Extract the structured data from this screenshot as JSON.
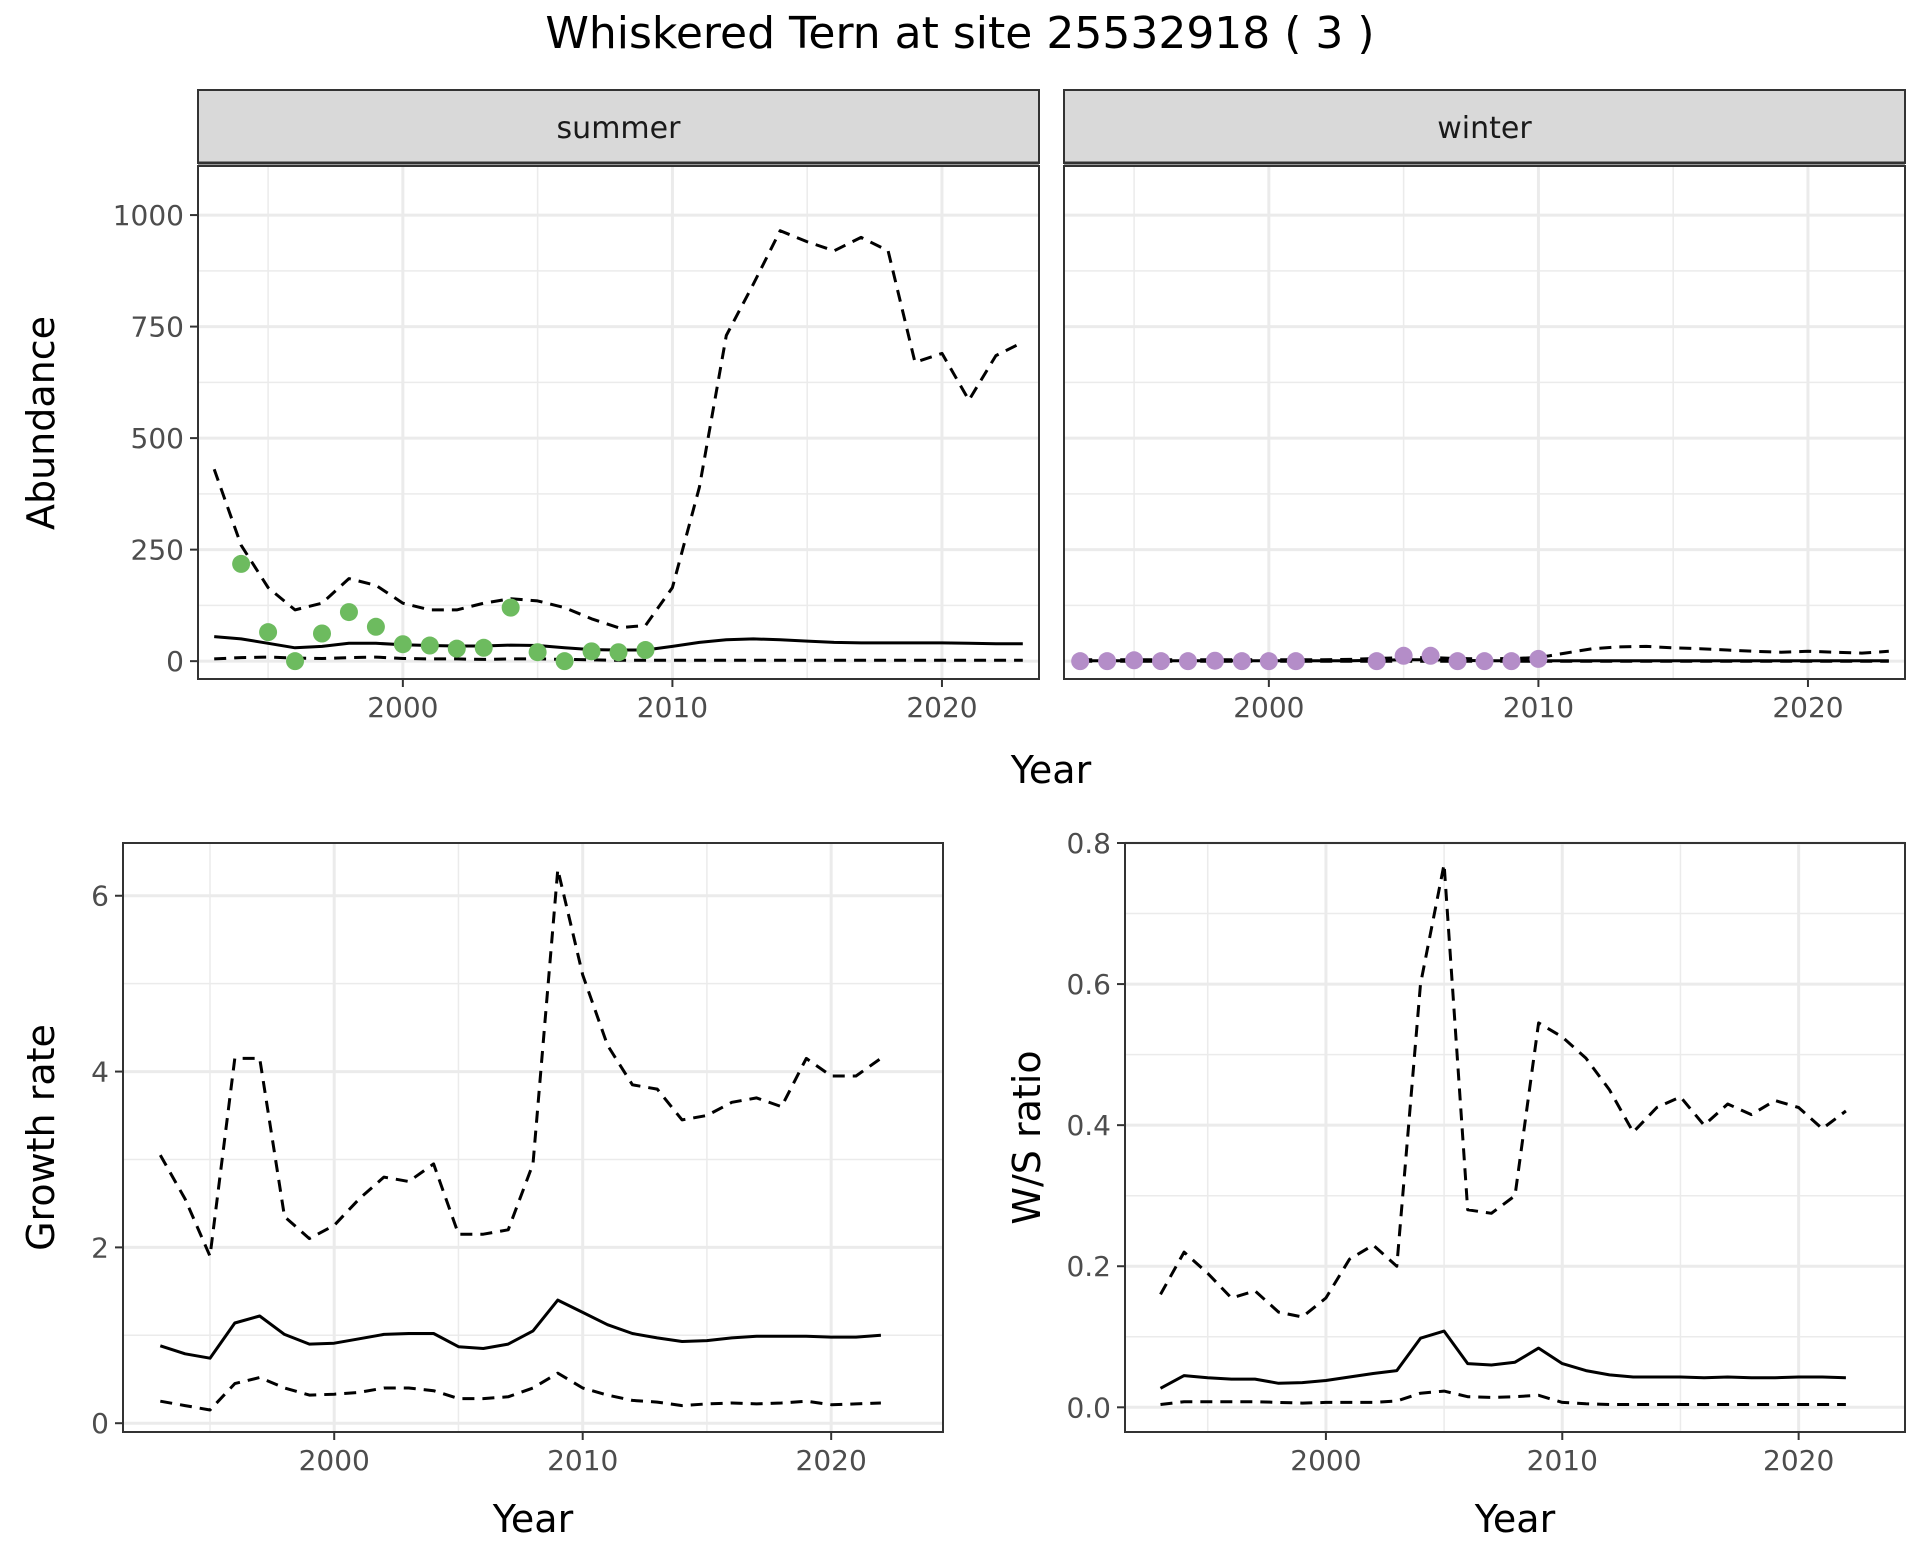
{
  "figure": {
    "title": "Whiskered Tern at site 25532918 ( 3 )"
  },
  "chart_data": [
    {
      "id": "abundance",
      "type": "line",
      "ylabel": "Abundance",
      "xlabel": "Year",
      "x_range": [
        1992.4,
        2023.6
      ],
      "ylim": [
        -40,
        1110
      ],
      "x_ticks": [
        2000,
        2010,
        2020
      ],
      "y_ticks": [
        0,
        250,
        500,
        750,
        1000
      ],
      "y_tick_labels": [
        "0",
        "250",
        "500",
        "750",
        "1000"
      ],
      "grid": true,
      "facets": [
        {
          "label": "summer",
          "point_color": "#6dbb5f",
          "mean": {
            "x": [
              1993,
              1994,
              1995,
              1996,
              1997,
              1998,
              1999,
              2000,
              2001,
              2002,
              2003,
              2004,
              2005,
              2006,
              2007,
              2008,
              2009,
              2010,
              2011,
              2012,
              2013,
              2014,
              2015,
              2016,
              2017,
              2018,
              2019,
              2020,
              2021,
              2022,
              2023
            ],
            "y": [
              55,
              50,
              40,
              30,
              33,
              40,
              40,
              37,
              35,
              34,
              34,
              36,
              35,
              30,
              26,
              25,
              25,
              33,
              42,
              48,
              50,
              48,
              45,
              42,
              41,
              41,
              41,
              41,
              40,
              39,
              39
            ]
          },
          "upper": {
            "x": [
              1993,
              1994,
              1995,
              1996,
              1997,
              1998,
              1999,
              2000,
              2001,
              2002,
              2003,
              2004,
              2005,
              2006,
              2007,
              2008,
              2009,
              2010,
              2011,
              2012,
              2013,
              2014,
              2015,
              2016,
              2017,
              2018,
              2019,
              2020,
              2021,
              2022,
              2023
            ],
            "y": [
              430,
              260,
              165,
              115,
              130,
              185,
              170,
              130,
              115,
              115,
              130,
              140,
              135,
              120,
              95,
              75,
              80,
              165,
              390,
              730,
              845,
              965,
              940,
              920,
              950,
              920,
              670,
              690,
              585,
              685,
              715
            ]
          },
          "lower": {
            "x": [
              1993,
              1994,
              1995,
              1996,
              1997,
              1998,
              1999,
              2000,
              2001,
              2002,
              2003,
              2004,
              2005,
              2006,
              2007,
              2008,
              2009,
              2010,
              2011,
              2012,
              2013,
              2014,
              2015,
              2016,
              2017,
              2018,
              2019,
              2020,
              2021,
              2022,
              2023
            ],
            "y": [
              5,
              8,
              9,
              7,
              6,
              8,
              9,
              6,
              5,
              5,
              4,
              5,
              5,
              4,
              3,
              2,
              2,
              2,
              2,
              2,
              2,
              2,
              2,
              2,
              2,
              2,
              2,
              2,
              2,
              2,
              2
            ]
          },
          "points": {
            "x": [
              1994,
              1995,
              1996,
              1997,
              1998,
              1999,
              2000,
              2001,
              2002,
              2003,
              2004,
              2005,
              2006,
              2007,
              2008,
              2009
            ],
            "y": [
              218,
              65,
              0,
              62,
              110,
              77,
              38,
              35,
              28,
              30,
              120,
              20,
              0,
              22,
              20,
              25
            ]
          }
        },
        {
          "label": "winter",
          "point_color": "#b48dc8",
          "mean": {
            "x": [
              1993,
              1994,
              1995,
              1996,
              1997,
              1998,
              1999,
              2000,
              2001,
              2002,
              2003,
              2004,
              2005,
              2006,
              2007,
              2008,
              2009,
              2010,
              2011,
              2012,
              2013,
              2014,
              2015,
              2016,
              2017,
              2018,
              2019,
              2020,
              2021,
              2022,
              2023
            ],
            "y": [
              1,
              1,
              1,
              1,
              1,
              1,
              1,
              1,
              1,
              1,
              1,
              2,
              3,
              3,
              2,
              1,
              1,
              1,
              1,
              1,
              1,
              1,
              1,
              1,
              1,
              1,
              1,
              1,
              1,
              1,
              1
            ]
          },
          "upper": {
            "x": [
              1993,
              1994,
              1995,
              1996,
              1997,
              1998,
              1999,
              2000,
              2001,
              2002,
              2003,
              2004,
              2005,
              2006,
              2007,
              2008,
              2009,
              2010,
              2011,
              2012,
              2013,
              2014,
              2015,
              2016,
              2017,
              2018,
              2019,
              2020,
              2021,
              2022,
              2023
            ],
            "y": [
              3,
              3,
              3,
              3,
              3,
              3,
              3,
              3,
              3,
              3,
              4,
              6,
              8,
              8,
              6,
              5,
              6,
              8,
              18,
              28,
              32,
              33,
              30,
              28,
              25,
              22,
              20,
              22,
              20,
              18,
              22
            ]
          },
          "lower": {
            "x": [
              1993,
              1994,
              1995,
              1996,
              1997,
              1998,
              1999,
              2000,
              2001,
              2002,
              2003,
              2004,
              2005,
              2006,
              2007,
              2008,
              2009,
              2010,
              2011,
              2012,
              2013,
              2014,
              2015,
              2016,
              2017,
              2018,
              2019,
              2020,
              2021,
              2022,
              2023
            ],
            "y": [
              0,
              0,
              0,
              0,
              0,
              0,
              0,
              0,
              0,
              0,
              0,
              0,
              0,
              0,
              0,
              0,
              0,
              0,
              0,
              0,
              0,
              0,
              0,
              0,
              0,
              0,
              0,
              0,
              0,
              0,
              0
            ]
          },
          "points": {
            "x": [
              1993,
              1994,
              1995,
              1996,
              1997,
              1998,
              1999,
              2000,
              2001,
              2004,
              2005,
              2006,
              2007,
              2008,
              2009,
              2010
            ],
            "y": [
              0,
              0,
              2,
              0,
              0,
              1,
              0,
              0,
              0,
              0,
              12,
              12,
              0,
              0,
              0,
              5
            ]
          }
        }
      ]
    },
    {
      "id": "growth",
      "type": "line",
      "ylabel": "Growth rate",
      "xlabel": "Year",
      "x_range": [
        1991.5,
        2024.5
      ],
      "ylim": [
        -0.1,
        6.6
      ],
      "x_ticks": [
        2000,
        2010,
        2020
      ],
      "y_ticks": [
        0,
        2,
        4,
        6
      ],
      "y_tick_labels": [
        "0",
        "2",
        "4",
        "6"
      ],
      "grid": true,
      "series": [
        {
          "name": "",
          "style": "solid",
          "x": [
            1993,
            1994,
            1995,
            1996,
            1997,
            1998,
            1999,
            2000,
            2001,
            2002,
            2003,
            2004,
            2005,
            2006,
            2007,
            2008,
            2009,
            2010,
            2011,
            2012,
            2013,
            2014,
            2015,
            2016,
            2017,
            2018,
            2019,
            2020,
            2021,
            2022
          ],
          "y": [
            0.88,
            0.79,
            0.74,
            1.14,
            1.22,
            1.01,
            0.9,
            0.91,
            0.96,
            1.01,
            1.02,
            1.02,
            0.87,
            0.85,
            0.9,
            1.05,
            1.4,
            1.26,
            1.12,
            1.02,
            0.97,
            0.93,
            0.94,
            0.97,
            0.99,
            0.99,
            0.99,
            0.98,
            0.98,
            1.0
          ]
        },
        {
          "name": "",
          "style": "dashed",
          "x": [
            1993,
            1994,
            1995,
            1996,
            1997,
            1998,
            1999,
            2000,
            2001,
            2002,
            2003,
            2004,
            2005,
            2006,
            2007,
            2008,
            2009,
            2010,
            2011,
            2012,
            2013,
            2014,
            2015,
            2016,
            2017,
            2018,
            2019,
            2020,
            2021,
            2022
          ],
          "y": [
            3.05,
            2.55,
            1.9,
            4.15,
            4.15,
            2.35,
            2.1,
            2.25,
            2.55,
            2.8,
            2.75,
            2.95,
            2.15,
            2.15,
            2.2,
            2.95,
            6.3,
            5.1,
            4.3,
            3.85,
            3.8,
            3.45,
            3.5,
            3.65,
            3.7,
            3.6,
            4.15,
            3.95,
            3.95,
            4.15
          ]
        },
        {
          "name": "",
          "style": "dashed",
          "x": [
            1993,
            1994,
            1995,
            1996,
            1997,
            1998,
            1999,
            2000,
            2001,
            2002,
            2003,
            2004,
            2005,
            2006,
            2007,
            2008,
            2009,
            2010,
            2011,
            2012,
            2013,
            2014,
            2015,
            2016,
            2017,
            2018,
            2019,
            2020,
            2021,
            2022
          ],
          "y": [
            0.25,
            0.2,
            0.15,
            0.45,
            0.52,
            0.4,
            0.32,
            0.33,
            0.35,
            0.4,
            0.4,
            0.37,
            0.28,
            0.28,
            0.3,
            0.4,
            0.57,
            0.4,
            0.32,
            0.26,
            0.24,
            0.2,
            0.22,
            0.23,
            0.22,
            0.23,
            0.25,
            0.21,
            0.22,
            0.23
          ]
        }
      ]
    },
    {
      "id": "ratio",
      "type": "line",
      "ylabel": "W/S ratio",
      "xlabel": "Year",
      "x_range": [
        1991.5,
        2024.5
      ],
      "ylim": [
        -0.035,
        0.8
      ],
      "x_ticks": [
        2000,
        2010,
        2020
      ],
      "y_ticks": [
        0,
        0.2,
        0.4,
        0.6,
        0.8
      ],
      "y_tick_labels": [
        "0.0",
        "0.2",
        "0.4",
        "0.6",
        "0.8"
      ],
      "grid": true,
      "series": [
        {
          "name": "",
          "style": "solid",
          "x": [
            1993,
            1994,
            1995,
            1996,
            1997,
            1998,
            1999,
            2000,
            2001,
            2002,
            2003,
            2004,
            2005,
            2006,
            2007,
            2008,
            2009,
            2010,
            2011,
            2012,
            2013,
            2014,
            2015,
            2016,
            2017,
            2018,
            2019,
            2020,
            2021,
            2022
          ],
          "y": [
            0.027,
            0.045,
            0.042,
            0.04,
            0.04,
            0.034,
            0.035,
            0.038,
            0.043,
            0.048,
            0.052,
            0.098,
            0.108,
            0.062,
            0.06,
            0.064,
            0.084,
            0.062,
            0.052,
            0.046,
            0.043,
            0.043,
            0.043,
            0.042,
            0.043,
            0.042,
            0.042,
            0.043,
            0.043,
            0.042
          ]
        },
        {
          "name": "",
          "style": "dashed",
          "x": [
            1993,
            1994,
            1995,
            1996,
            1997,
            1998,
            1999,
            2000,
            2001,
            2002,
            2003,
            2004,
            2005,
            2006,
            2007,
            2008,
            2009,
            2010,
            2011,
            2012,
            2013,
            2014,
            2015,
            2016,
            2017,
            2018,
            2019,
            2020,
            2021,
            2022
          ],
          "y": [
            0.16,
            0.22,
            0.19,
            0.155,
            0.165,
            0.135,
            0.128,
            0.155,
            0.21,
            0.23,
            0.2,
            0.6,
            0.77,
            0.28,
            0.275,
            0.3,
            0.545,
            0.525,
            0.495,
            0.45,
            0.39,
            0.425,
            0.44,
            0.4,
            0.43,
            0.415,
            0.435,
            0.425,
            0.395,
            0.42
          ]
        },
        {
          "name": "",
          "style": "dashed",
          "x": [
            1993,
            1994,
            1995,
            1996,
            1997,
            1998,
            1999,
            2000,
            2001,
            2002,
            2003,
            2004,
            2005,
            2006,
            2007,
            2008,
            2009,
            2010,
            2011,
            2012,
            2013,
            2014,
            2015,
            2016,
            2017,
            2018,
            2019,
            2020,
            2021,
            2022
          ],
          "y": [
            0.004,
            0.008,
            0.008,
            0.008,
            0.008,
            0.007,
            0.006,
            0.007,
            0.007,
            0.007,
            0.009,
            0.02,
            0.023,
            0.015,
            0.014,
            0.015,
            0.017,
            0.007,
            0.005,
            0.004,
            0.004,
            0.004,
            0.004,
            0.004,
            0.004,
            0.004,
            0.004,
            0.004,
            0.004,
            0.004
          ]
        }
      ]
    }
  ]
}
